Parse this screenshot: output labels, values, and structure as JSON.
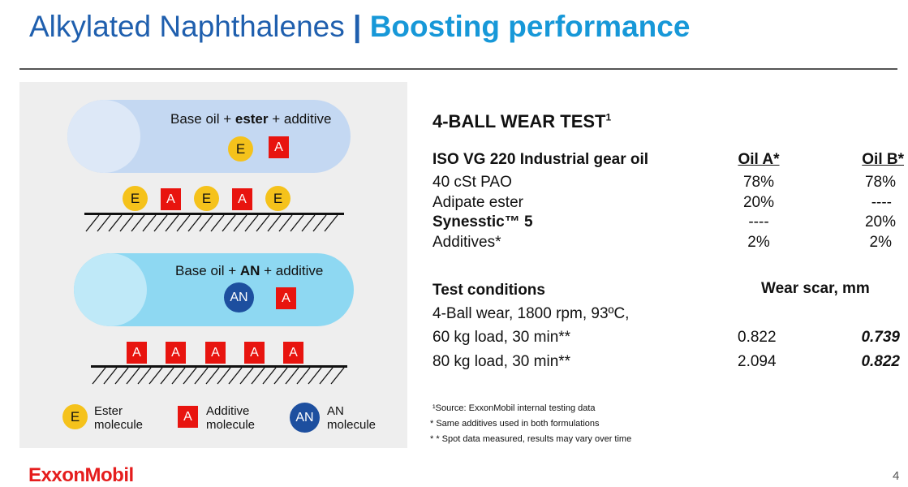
{
  "title": {
    "part1": "Alkylated Naphthalenes",
    "separator": "|",
    "part2": "Boosting performance"
  },
  "diagram": {
    "ester_pill": {
      "pre": "Base oil + ",
      "bold": "ester",
      "post": " + additive"
    },
    "an_pill": {
      "pre": "Base oil + ",
      "bold": "AN",
      "post": " + additive"
    },
    "chip_e": "E",
    "chip_a": "A",
    "chip_an": "AN",
    "ester_surface_sequence": [
      "E",
      "A",
      "E",
      "A",
      "E"
    ],
    "an_surface_sequence": [
      "A",
      "A",
      "A",
      "A",
      "A"
    ],
    "legend": [
      {
        "chip": "E",
        "line1": "Ester",
        "line2": "molecule"
      },
      {
        "chip": "A",
        "line1": "Additive",
        "line2": "molecule"
      },
      {
        "chip": "AN",
        "line1": "AN",
        "line2": "molecule"
      }
    ],
    "colors": {
      "ester": "#f5c21b",
      "additive": "#e8140f",
      "an": "#1d4f9f",
      "ester_pill": "#c4d8f2",
      "an_pill": "#8ed8f2"
    }
  },
  "test": {
    "heading": "4-BALL WEAR TEST",
    "heading_sup": "1",
    "formulation_header": "ISO VG 220 Industrial gear oil",
    "col_a": "Oil A*",
    "col_b": "Oil B*",
    "rows": [
      {
        "label": "40 cSt PAO",
        "a": "78%",
        "b": "78%",
        "bold": false
      },
      {
        "label": "Adipate ester",
        "a": "20%",
        "b": "----",
        "bold": false
      },
      {
        "label": "Synesstic™ 5",
        "a": "----",
        "b": "20%",
        "bold": true
      },
      {
        "label": "Additives*",
        "a": "2%",
        "b": "2%",
        "bold": false
      }
    ],
    "conditions_header": "Test conditions",
    "wear_header": "Wear scar, mm",
    "condition_line": "4-Ball wear, 1800 rpm, 93ºC,",
    "results": [
      {
        "label": "60 kg load, 30 min**",
        "a": "0.822",
        "b": "0.739"
      },
      {
        "label": "80 kg load, 30 min**",
        "a": "2.094",
        "b": "0.822"
      }
    ]
  },
  "footnotes": [
    "¹Source: ExxonMobil internal testing data",
    "* Same additives used in both formulations",
    "* * Spot data measured, results may vary over time"
  ],
  "logo": "ExxonMobil",
  "page_number": "4"
}
